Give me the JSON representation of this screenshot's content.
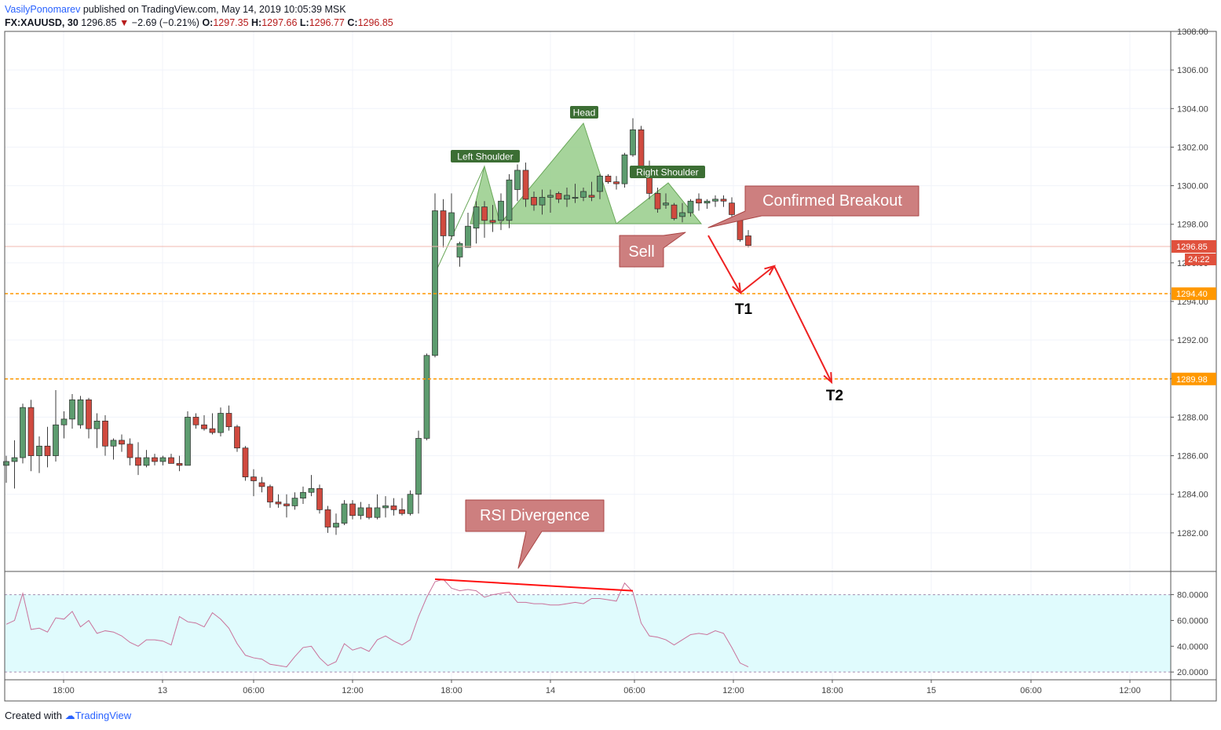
{
  "header": {
    "author": "VasilyPonomarev",
    "published_text": "published on TradingView.com, May 14, 2019 10:05:39 MSK",
    "symbol": "FX:XAUUSD, 30",
    "last": "1296.85",
    "change": "−2.69 (−0.21%)",
    "open_label": "O:",
    "open": "1297.35",
    "high_label": "H:",
    "high": "1297.66",
    "low_label": "L:",
    "low": "1296.77",
    "close_label": "C:",
    "close": "1296.85"
  },
  "footer": {
    "created_with": "Created with",
    "brand": "TradingView"
  },
  "colors": {
    "up": "#5d9c6f",
    "down": "#d04a3f",
    "pattern_fill": "#97cc8a",
    "pattern_stroke": "#6aa85a",
    "label_green": "#3c6e34",
    "callout": "#cd7f7f",
    "callout_border": "#a94444",
    "arrow": "#ee2222",
    "target_line": "#ff9800",
    "rsi_line": "#c9719a",
    "rsi_band": "#e0fbfd",
    "price_badge": "#e0513d"
  },
  "chart_data": {
    "type": "candlestick",
    "price_axis": {
      "ylim": [
        1280.0,
        1308.0
      ],
      "ticks": [
        "1282.00",
        "1284.00",
        "1286.00",
        "1288.00",
        "1290.00",
        "1292.00",
        "1294.00",
        "1296.00",
        "1298.00",
        "1300.00",
        "1302.00",
        "1304.00",
        "1306.00",
        "1308.00"
      ]
    },
    "x_axis": {
      "tick_labels": [
        "18:00",
        "13",
        "06:00",
        "12:00",
        "18:00",
        "14",
        "06:00",
        "12:00",
        "18:00",
        "15",
        "06:00",
        "12:00"
      ]
    },
    "candles": [
      [
        1285.5,
        1286.0,
        1284.6,
        1285.7
      ],
      [
        1285.7,
        1286.8,
        1284.3,
        1285.9
      ],
      [
        1285.9,
        1288.7,
        1285.6,
        1288.5
      ],
      [
        1288.5,
        1288.9,
        1285.2,
        1286.0
      ],
      [
        1286.0,
        1287.0,
        1285.1,
        1286.5
      ],
      [
        1286.5,
        1287.5,
        1285.4,
        1286.0
      ],
      [
        1286.0,
        1289.4,
        1285.7,
        1287.6
      ],
      [
        1287.6,
        1288.3,
        1286.9,
        1287.9
      ],
      [
        1287.9,
        1289.2,
        1287.4,
        1288.9
      ],
      [
        1287.6,
        1289.1,
        1287.4,
        1288.9
      ],
      [
        1288.9,
        1289.0,
        1286.9,
        1287.4
      ],
      [
        1287.4,
        1288.2,
        1286.4,
        1287.8
      ],
      [
        1287.8,
        1288.1,
        1286.0,
        1286.5
      ],
      [
        1286.5,
        1286.9,
        1285.8,
        1286.8
      ],
      [
        1286.8,
        1287.1,
        1286.2,
        1286.6
      ],
      [
        1286.6,
        1286.9,
        1285.5,
        1285.9
      ],
      [
        1285.9,
        1286.7,
        1285.0,
        1285.5
      ],
      [
        1285.5,
        1286.3,
        1285.4,
        1285.9
      ],
      [
        1285.9,
        1286.1,
        1285.5,
        1285.7
      ],
      [
        1285.7,
        1286.0,
        1285.5,
        1285.9
      ],
      [
        1285.9,
        1286.1,
        1285.6,
        1285.6
      ],
      [
        1285.6,
        1286.0,
        1285.2,
        1285.5
      ],
      [
        1285.5,
        1288.3,
        1285.5,
        1288.0
      ],
      [
        1288.0,
        1288.2,
        1287.4,
        1287.6
      ],
      [
        1287.6,
        1288.1,
        1287.3,
        1287.4
      ],
      [
        1287.4,
        1288.2,
        1287.1,
        1287.2
      ],
      [
        1287.2,
        1288.5,
        1287.0,
        1288.2
      ],
      [
        1288.2,
        1288.6,
        1287.3,
        1287.5
      ],
      [
        1287.5,
        1287.6,
        1286.2,
        1286.4
      ],
      [
        1286.4,
        1286.5,
        1284.7,
        1284.9
      ],
      [
        1284.9,
        1285.3,
        1283.9,
        1284.7
      ],
      [
        1284.6,
        1284.9,
        1284.1,
        1284.4
      ],
      [
        1284.4,
        1284.5,
        1283.3,
        1283.6
      ],
      [
        1283.6,
        1284.0,
        1283.3,
        1283.5
      ],
      [
        1283.5,
        1284.0,
        1282.8,
        1283.4
      ],
      [
        1283.4,
        1284.1,
        1283.2,
        1283.8
      ],
      [
        1283.8,
        1284.4,
        1283.5,
        1284.1
      ],
      [
        1284.1,
        1285.0,
        1283.9,
        1284.3
      ],
      [
        1284.3,
        1284.5,
        1283.0,
        1283.2
      ],
      [
        1283.2,
        1283.4,
        1282.0,
        1282.3
      ],
      [
        1282.3,
        1283.0,
        1281.9,
        1282.5
      ],
      [
        1282.5,
        1283.7,
        1282.4,
        1283.5
      ],
      [
        1283.5,
        1283.7,
        1282.7,
        1282.9
      ],
      [
        1282.9,
        1283.6,
        1282.7,
        1283.3
      ],
      [
        1283.3,
        1283.5,
        1282.7,
        1282.8
      ],
      [
        1282.8,
        1284.0,
        1282.7,
        1283.3
      ],
      [
        1283.3,
        1283.9,
        1282.8,
        1283.4
      ],
      [
        1283.4,
        1283.8,
        1282.9,
        1283.2
      ],
      [
        1283.2,
        1283.8,
        1282.9,
        1283.0
      ],
      [
        1283.0,
        1284.2,
        1282.9,
        1284.0
      ],
      [
        1284.0,
        1287.3,
        1283.0,
        1286.9
      ],
      [
        1286.9,
        1291.3,
        1286.8,
        1291.2
      ],
      [
        1291.2,
        1299.6,
        1291.1,
        1298.7
      ],
      [
        1298.7,
        1299.3,
        1296.8,
        1297.4
      ],
      [
        1297.4,
        1299.6,
        1297.2,
        1298.6
      ],
      [
        1296.3,
        1297.1,
        1295.8,
        1297.0
      ],
      [
        1296.8,
        1298.6,
        1296.8,
        1297.9
      ],
      [
        1297.8,
        1299.2,
        1297.0,
        1298.9
      ],
      [
        1298.9,
        1299.2,
        1297.3,
        1298.2
      ],
      [
        1298.2,
        1299.0,
        1297.6,
        1298.1
      ],
      [
        1298.2,
        1299.6,
        1297.7,
        1299.2
      ],
      [
        1298.2,
        1300.6,
        1297.8,
        1300.3
      ],
      [
        1299.8,
        1301.1,
        1299.2,
        1300.8
      ],
      [
        1300.8,
        1301.2,
        1298.9,
        1299.3
      ],
      [
        1299.4,
        1299.7,
        1298.7,
        1299.0
      ],
      [
        1299.0,
        1299.8,
        1298.5,
        1299.4
      ],
      [
        1299.4,
        1299.8,
        1298.6,
        1299.5
      ],
      [
        1299.6,
        1299.7,
        1299.1,
        1299.3
      ],
      [
        1299.3,
        1299.9,
        1298.9,
        1299.5
      ],
      [
        1299.4,
        1300.1,
        1299.1,
        1299.4
      ],
      [
        1299.4,
        1299.9,
        1299.2,
        1299.7
      ],
      [
        1299.5,
        1300.2,
        1299.2,
        1299.4
      ],
      [
        1299.7,
        1300.6,
        1299.3,
        1300.5
      ],
      [
        1300.5,
        1300.6,
        1300.1,
        1300.2
      ],
      [
        1300.2,
        1300.5,
        1299.8,
        1300.1
      ],
      [
        1300.1,
        1301.7,
        1299.9,
        1301.6
      ],
      [
        1301.6,
        1303.5,
        1301.5,
        1302.9
      ],
      [
        1302.9,
        1303.1,
        1300.8,
        1300.9
      ],
      [
        1300.8,
        1301.3,
        1299.3,
        1299.6
      ],
      [
        1299.6,
        1299.9,
        1298.6,
        1298.8
      ],
      [
        1299.0,
        1299.6,
        1298.8,
        1299.1
      ],
      [
        1299.0,
        1299.1,
        1298.2,
        1298.3
      ],
      [
        1298.4,
        1299.1,
        1298.1,
        1298.6
      ],
      [
        1298.6,
        1299.3,
        1298.4,
        1299.2
      ],
      [
        1299.3,
        1299.6,
        1298.7,
        1299.1
      ],
      [
        1299.1,
        1299.3,
        1298.8,
        1299.2
      ],
      [
        1299.2,
        1299.5,
        1298.9,
        1299.3
      ],
      [
        1299.3,
        1299.5,
        1298.9,
        1299.2
      ],
      [
        1299.1,
        1299.4,
        1298.3,
        1298.5
      ],
      [
        1298.2,
        1298.3,
        1297.1,
        1297.2
      ],
      [
        1297.4,
        1297.7,
        1296.8,
        1296.9
      ]
    ],
    "current_price": 1296.85,
    "current_price_label": "1296.85",
    "countdown_label": "24:22",
    "target_lines": [
      {
        "name": "T1",
        "price": 1294.4,
        "label": "1294.40"
      },
      {
        "name": "T2",
        "price": 1289.98,
        "label": "1289.98"
      }
    ],
    "pattern": {
      "name": "Head and Shoulders",
      "left_shoulder": "Left Shoulder",
      "head": "Head",
      "right_shoulder": "Right Shoulder"
    },
    "annotations": {
      "breakout": "Confirmed Breakout",
      "sell": "Sell",
      "rsi_divergence": "RSI Divergence",
      "t1": "T1",
      "t2": "T2"
    },
    "rsi": {
      "ylim": [
        14,
        98
      ],
      "ticks": [
        "20.0000",
        "40.0000",
        "60.0000",
        "80.0000"
      ],
      "band": [
        20,
        80
      ],
      "values": [
        57,
        60,
        81,
        53,
        54,
        51,
        62,
        61,
        67,
        55,
        60,
        50,
        52,
        51,
        48,
        43,
        40,
        45,
        45,
        44,
        41,
        63,
        59,
        58,
        55,
        66,
        61,
        54,
        42,
        33,
        31,
        30,
        26,
        25,
        24,
        32,
        39,
        40,
        31,
        25,
        28,
        42,
        37,
        39,
        36,
        45,
        48,
        44,
        41,
        45,
        63,
        78,
        90,
        92,
        85,
        83,
        84,
        83,
        78,
        80,
        81,
        82,
        74,
        74,
        73,
        73,
        72,
        72,
        73,
        74,
        73,
        77,
        77,
        76,
        75,
        89,
        82,
        58,
        48,
        47,
        45,
        41,
        45,
        49,
        50,
        49,
        52,
        50,
        39,
        27,
        24
      ]
    }
  }
}
